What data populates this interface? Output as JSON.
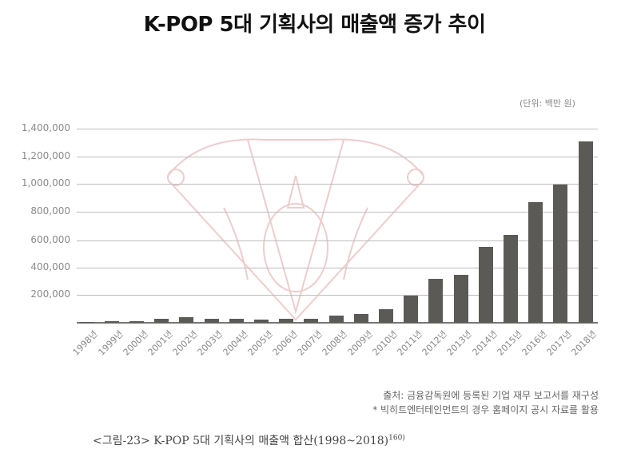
{
  "title": "K-POP 5대 기획사의 매출액 증가 추이",
  "unit_label": "(단위: 백만 원)",
  "source": {
    "line1": "출처: 금융감독원에 등록된 기업 재무 보고서를 재구성",
    "line2": "* 빅히트엔터테인먼트의 경우 홈페이지 공시 자료를 활용"
  },
  "caption": {
    "text": "<그림-23> K-POP 5대 기획사의 매출액 합산(1998~2018)",
    "footnote": "160)"
  },
  "colors": {
    "bar": "#5b5a56",
    "grid": "#bdbdbd",
    "watermark": "#c0504d"
  },
  "chart_data": {
    "type": "bar",
    "title": "K-POP 5대 기획사의 매출액 증가 추이",
    "xlabel": "",
    "ylabel": "(단위: 백만 원)",
    "ylim": [
      0,
      1400000
    ],
    "yticks": [
      "1,400,000",
      "1,200,000",
      "1,000,000",
      "800,000",
      "600,000",
      "400,000",
      "200,000"
    ],
    "grid": true,
    "legend": null,
    "categories": [
      "1998년",
      "1999년",
      "2000년",
      "2001년",
      "2002년",
      "2003년",
      "2004년",
      "2005년",
      "2006년",
      "2007년",
      "2008년",
      "2009년",
      "2010년",
      "2011년",
      "2012년",
      "2013년",
      "2014년",
      "2015년",
      "2016년",
      "2017년",
      "2018년"
    ],
    "values": [
      6000,
      12000,
      14000,
      28000,
      38000,
      28000,
      28000,
      22000,
      27000,
      27000,
      50000,
      65000,
      100000,
      198000,
      315000,
      344000,
      548000,
      636000,
      869000,
      998000,
      1305000
    ]
  }
}
